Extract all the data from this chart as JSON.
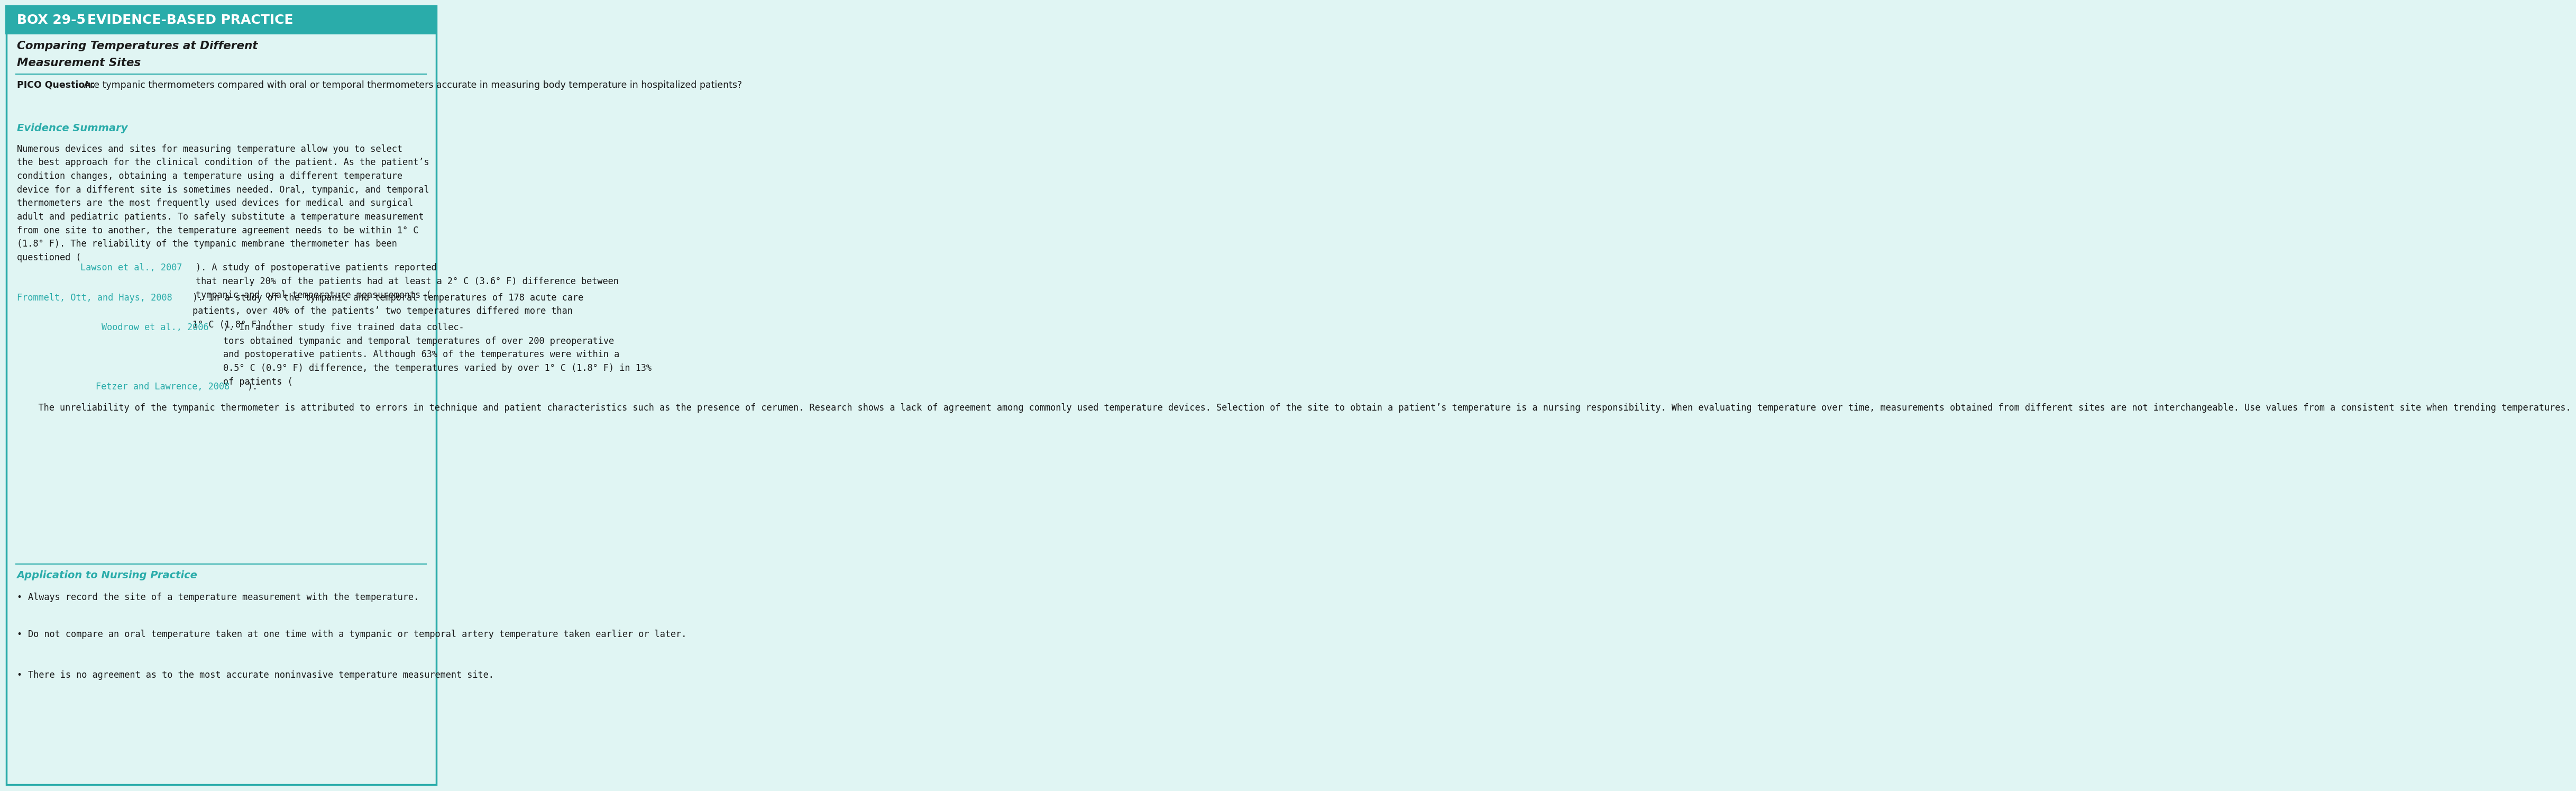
{
  "header_bg": "#2AACAA",
  "header_text_color": "#FFFFFF",
  "body_bg": "#E0F5F3",
  "teal_color": "#2AACAA",
  "dark_text": "#1a1a1a",
  "link_color": "#2AACAA",
  "header_label": "BOX 29-5",
  "header_title": "EVIDENCE-BASED PRACTICE",
  "subtitle_line1": "Comparing Temperatures at Different",
  "subtitle_line2": "Measurement Sites",
  "pico_label": "PICO Question:",
  "pico_text": " Are tympanic thermometers compared with oral or temporal thermometers accurate in measuring body temperature in hospitalized patients?",
  "evidence_summary_title": "Evidence Summary",
  "evidence_paragraph1": "Numerous devices and sites for measuring temperature allow you to select the best approach for the clinical condition of the patient. As the patient’s condition changes, obtaining a temperature using a different temperature device for a different site is sometimes needed. Oral, tympanic, and temporal thermometers are the most frequently used devices for medical and surgical adult and pediatric patients. To safely substitute a temperature measurement from one site to another, the temperature agreement needs to be within 1° C (1.8° F). The reliability of the tympanic membrane thermometer has been questioned (",
  "link1": "Lawson et al., 2007",
  "evidence_paragraph1b": "). A study of postoperative patients reported that nearly 20% of the patients had at least a 2° C (3.6° F) difference between tympanic and oral temperature measurements (",
  "link2": "Frommelt, Ott, and Hays, 2008",
  "evidence_paragraph1c": "). In a study of the tympanic and temporal temperatures of 178 acute care patients, over 40% of the patients’ two temperatures differed more than 1° C (1.8° F) (",
  "link3": "Woodrow et al., 2006",
  "evidence_paragraph1d": "). In another study five trained data collectors obtained tympanic and temporal temperatures of over 200 preoperative and postoperative patients. Although 63% of the temperatures were within a 0.5° C (0.9° F) difference, the temperatures varied by over 1° C (1.8° F) in 13% of patients (",
  "link4": "Fetzer and Lawrence, 2008",
  "evidence_paragraph1e": ").",
  "evidence_paragraph2": "    The unreliability of the tympanic thermometer is attributed to errors in technique and patient characteristics such as the presence of cerumen. Research shows a lack of agreement among commonly used temperature devices. Selection of the site to obtain a patient’s temperature is a nursing responsibility. When evaluating temperature over time, measurements obtained from different sites are not interchangeable. Use values from a consistent site when trending temperatures.",
  "application_title": "Application to Nursing Practice",
  "bullet1": "Always record the site of a temperature measurement with the temperature.",
  "bullet2": "Do not compare an oral temperature taken at one time with a tympanic or temporal artery temperature taken earlier or later.",
  "bullet3": "There is no agreement as to the most accurate noninvasive temperature measurement site."
}
